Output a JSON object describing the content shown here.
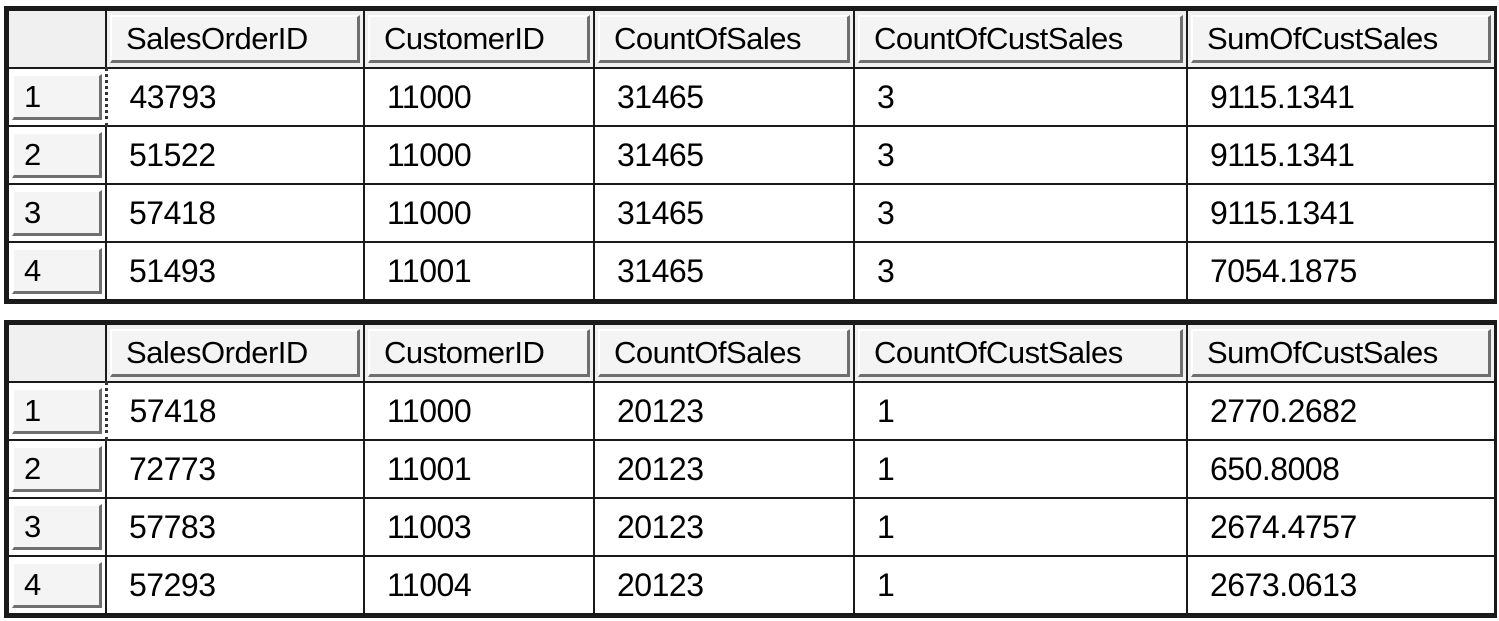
{
  "grids": [
    {
      "columns": [
        "SalesOrderID",
        "CustomerID",
        "CountOfSales",
        "CountOfCustSales",
        "SumOfCustSales"
      ],
      "rows": [
        {
          "num": "1",
          "cells": [
            "43793",
            "11000",
            "31465",
            "3",
            "9115.1341"
          ]
        },
        {
          "num": "2",
          "cells": [
            "51522",
            "11000",
            "31465",
            "3",
            "9115.1341"
          ]
        },
        {
          "num": "3",
          "cells": [
            "57418",
            "11000",
            "31465",
            "3",
            "9115.1341"
          ]
        },
        {
          "num": "4",
          "cells": [
            "51493",
            "11001",
            "31465",
            "3",
            "7054.1875"
          ]
        }
      ]
    },
    {
      "columns": [
        "SalesOrderID",
        "CustomerID",
        "CountOfSales",
        "CountOfCustSales",
        "SumOfCustSales"
      ],
      "rows": [
        {
          "num": "1",
          "cells": [
            "57418",
            "11000",
            "20123",
            "1",
            "2770.2682"
          ]
        },
        {
          "num": "2",
          "cells": [
            "72773",
            "11001",
            "20123",
            "1",
            "650.8008"
          ]
        },
        {
          "num": "3",
          "cells": [
            "57783",
            "11003",
            "20123",
            "1",
            "2674.4757"
          ]
        },
        {
          "num": "4",
          "cells": [
            "57293",
            "11004",
            "20123",
            "1",
            "2673.0613"
          ]
        }
      ]
    }
  ]
}
